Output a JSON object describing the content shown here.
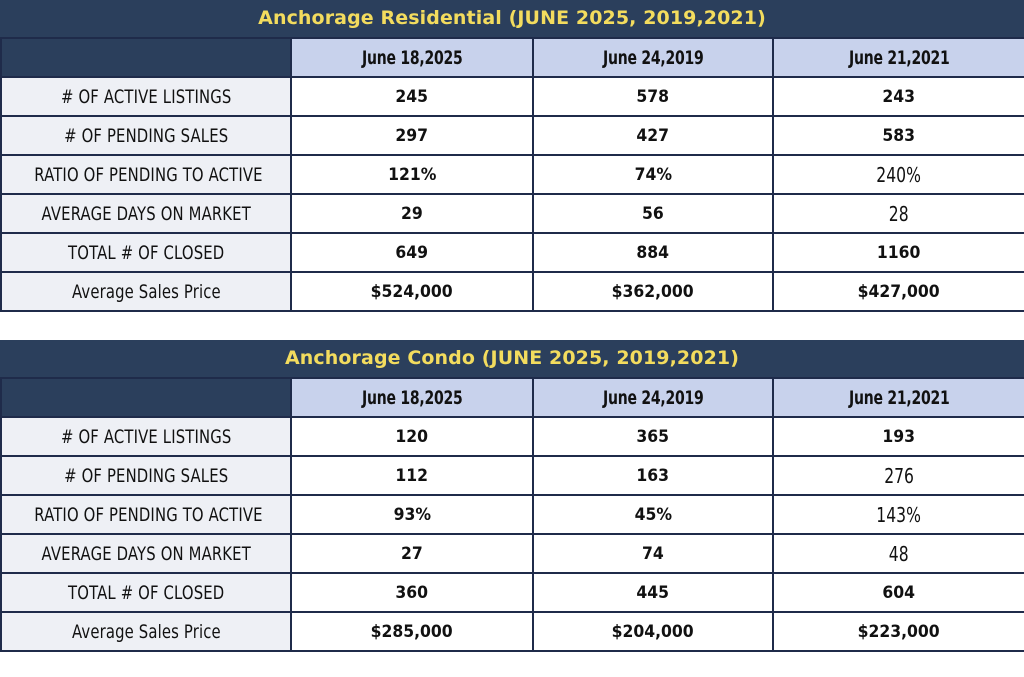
{
  "colors": {
    "title_bg": "#2b3f5c",
    "title_text": "#f3dc5e",
    "header_bg": "#c8d2ec",
    "label_bg": "#eef0f5",
    "border": "#1f2b4a"
  },
  "residential": {
    "title": "Anchorage Residential (JUNE 2025, 2019,2021)",
    "columns": [
      "June 18,2025",
      "June 24,2019",
      "June 21,2021"
    ],
    "rows": [
      {
        "label": "# OF ACTIVE LISTINGS",
        "values": [
          "245",
          "578",
          "243"
        ]
      },
      {
        "label": "# OF PENDING SALES",
        "values": [
          "297",
          "427",
          "583"
        ]
      },
      {
        "label": "RATIO OF PENDING TO ACTIVE",
        "values": [
          "121%",
          "74%",
          "240%"
        ]
      },
      {
        "label": "AVERAGE DAYS ON MARKET",
        "values": [
          "29",
          "56",
          "28"
        ]
      },
      {
        "label": "TOTAL # OF CLOSED",
        "values": [
          "649",
          "884",
          "1160"
        ]
      },
      {
        "label": "Average Sales Price",
        "values": [
          "$524,000",
          "$362,000",
          "$427,000"
        ]
      }
    ]
  },
  "condo": {
    "title": "Anchorage Condo (JUNE 2025, 2019,2021)",
    "columns": [
      "June 18,2025",
      "June 24,2019",
      "June 21,2021"
    ],
    "rows": [
      {
        "label": "# OF ACTIVE LISTINGS",
        "values": [
          "120",
          "365",
          "193"
        ]
      },
      {
        "label": "# OF PENDING SALES",
        "values": [
          "112",
          "163",
          "276"
        ]
      },
      {
        "label": "RATIO OF PENDING TO ACTIVE",
        "values": [
          "93%",
          "45%",
          "143%"
        ]
      },
      {
        "label": "AVERAGE DAYS ON MARKET",
        "values": [
          "27",
          "74",
          "48"
        ]
      },
      {
        "label": "TOTAL # OF CLOSED",
        "values": [
          "360",
          "445",
          "604"
        ]
      },
      {
        "label": "Average Sales Price",
        "values": [
          "$285,000",
          "$204,000",
          "$223,000"
        ]
      }
    ]
  }
}
